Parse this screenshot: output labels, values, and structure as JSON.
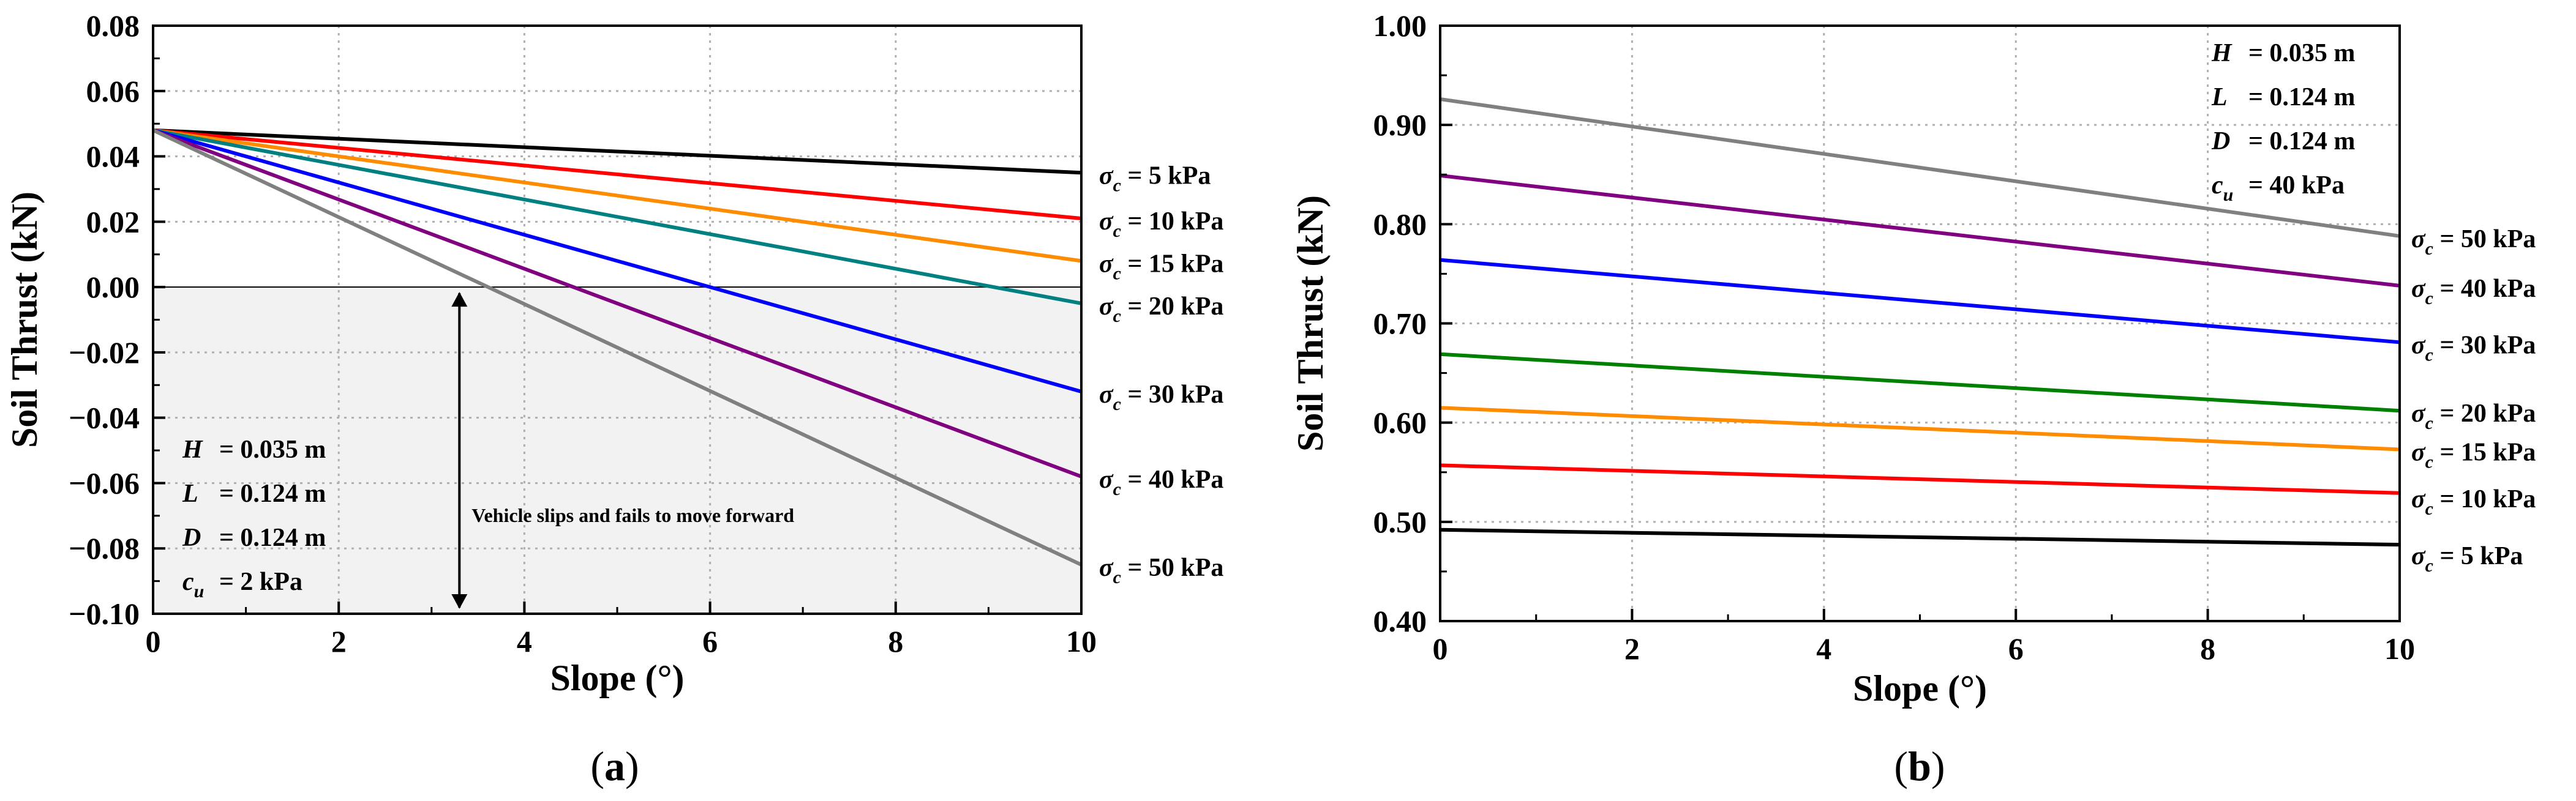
{
  "chart_data": [
    {
      "type": "line",
      "panel": "a",
      "caption_letter": "a",
      "xlabel": "Slope (°)",
      "ylabel": "Soil Thrust (kN)",
      "xlim": [
        0,
        10
      ],
      "ylim": [
        -0.1,
        0.08
      ],
      "xticks": [
        0,
        2,
        4,
        6,
        8,
        10
      ],
      "xticklabels": [
        "0",
        "2",
        "4",
        "6",
        "8",
        "10"
      ],
      "yticks": [
        -0.1,
        -0.08,
        -0.06,
        -0.04,
        -0.02,
        0.0,
        0.02,
        0.04,
        0.06,
        0.08
      ],
      "yticklabels": [
        "−0.10",
        "−0.08",
        "−0.06",
        "−0.04",
        "−0.02",
        "0.00",
        "0.02",
        "0.04",
        "0.06",
        "0.08"
      ],
      "grid": true,
      "shaded_region": {
        "y_from": -0.1,
        "y_to": 0.0,
        "color": "#f2f2f2"
      },
      "annotation": {
        "text": "Vehicle slips and fails to move forward",
        "arrow_x": 3.3
      },
      "params": [
        {
          "sym": "H",
          "sub": "",
          "value": " = 0.035 m"
        },
        {
          "sym": "L",
          "sub": "",
          "value": " = 0.124 m"
        },
        {
          "sym": "D",
          "sub": "",
          "value": " = 0.124 m"
        },
        {
          "sym": "c",
          "sub": "u",
          "value": " = 2 kPa"
        }
      ],
      "series": [
        {
          "name": "5 kPa",
          "color": "#000000",
          "x": [
            0,
            10
          ],
          "values": [
            0.048,
            0.035
          ]
        },
        {
          "name": "10 kPa",
          "color": "#ff0000",
          "x": [
            0,
            10
          ],
          "values": [
            0.048,
            0.021
          ]
        },
        {
          "name": "15 kPa",
          "color": "#ff8c00",
          "x": [
            0,
            10
          ],
          "values": [
            0.048,
            0.008
          ]
        },
        {
          "name": "20 kPa",
          "color": "#008080",
          "x": [
            0,
            10
          ],
          "values": [
            0.048,
            -0.005
          ]
        },
        {
          "name": "30 kPa",
          "color": "#0000ff",
          "x": [
            0,
            10
          ],
          "values": [
            0.048,
            -0.032
          ]
        },
        {
          "name": "40 kPa",
          "color": "#800080",
          "x": [
            0,
            10
          ],
          "values": [
            0.048,
            -0.058
          ]
        },
        {
          "name": "50 kPa",
          "color": "#808080",
          "x": [
            0,
            10
          ],
          "values": [
            0.048,
            -0.085
          ]
        }
      ]
    },
    {
      "type": "line",
      "panel": "b",
      "caption_letter": "b",
      "xlabel": "Slope (°)",
      "ylabel": "Soil Thrust (kN)",
      "xlim": [
        0,
        10
      ],
      "ylim": [
        0.4,
        1.0
      ],
      "xticks": [
        0,
        2,
        4,
        6,
        8,
        10
      ],
      "xticklabels": [
        "0",
        "2",
        "4",
        "6",
        "8",
        "10"
      ],
      "yticks": [
        0.4,
        0.5,
        0.6,
        0.7,
        0.8,
        0.9,
        1.0
      ],
      "yticklabels": [
        "0.40",
        "0.50",
        "0.60",
        "0.70",
        "0.80",
        "0.90",
        "1.00"
      ],
      "grid": true,
      "params": [
        {
          "sym": "H",
          "sub": "",
          "value": " = 0.035 m"
        },
        {
          "sym": "L",
          "sub": "",
          "value": " = 0.124 m"
        },
        {
          "sym": "D",
          "sub": "",
          "value": " = 0.124 m"
        },
        {
          "sym": "c",
          "sub": "u",
          "value": " = 40 kPa"
        }
      ],
      "series": [
        {
          "name": "5 kPa",
          "color": "#000000",
          "x": [
            0,
            10
          ],
          "values": [
            0.492,
            0.477
          ]
        },
        {
          "name": "10 kPa",
          "color": "#ff0000",
          "x": [
            0,
            10
          ],
          "values": [
            0.557,
            0.529
          ]
        },
        {
          "name": "15 kPa",
          "color": "#ff8c00",
          "x": [
            0,
            10
          ],
          "values": [
            0.615,
            0.573
          ]
        },
        {
          "name": "20 kPa",
          "color": "#008000",
          "x": [
            0,
            10
          ],
          "values": [
            0.669,
            0.612
          ]
        },
        {
          "name": "30 kPa",
          "color": "#0000ff",
          "x": [
            0,
            10
          ],
          "values": [
            0.764,
            0.681
          ]
        },
        {
          "name": "40 kPa",
          "color": "#800080",
          "x": [
            0,
            10
          ],
          "values": [
            0.849,
            0.738
          ]
        },
        {
          "name": "50 kPa",
          "color": "#808080",
          "x": [
            0,
            10
          ],
          "values": [
            0.926,
            0.788
          ]
        }
      ]
    }
  ]
}
